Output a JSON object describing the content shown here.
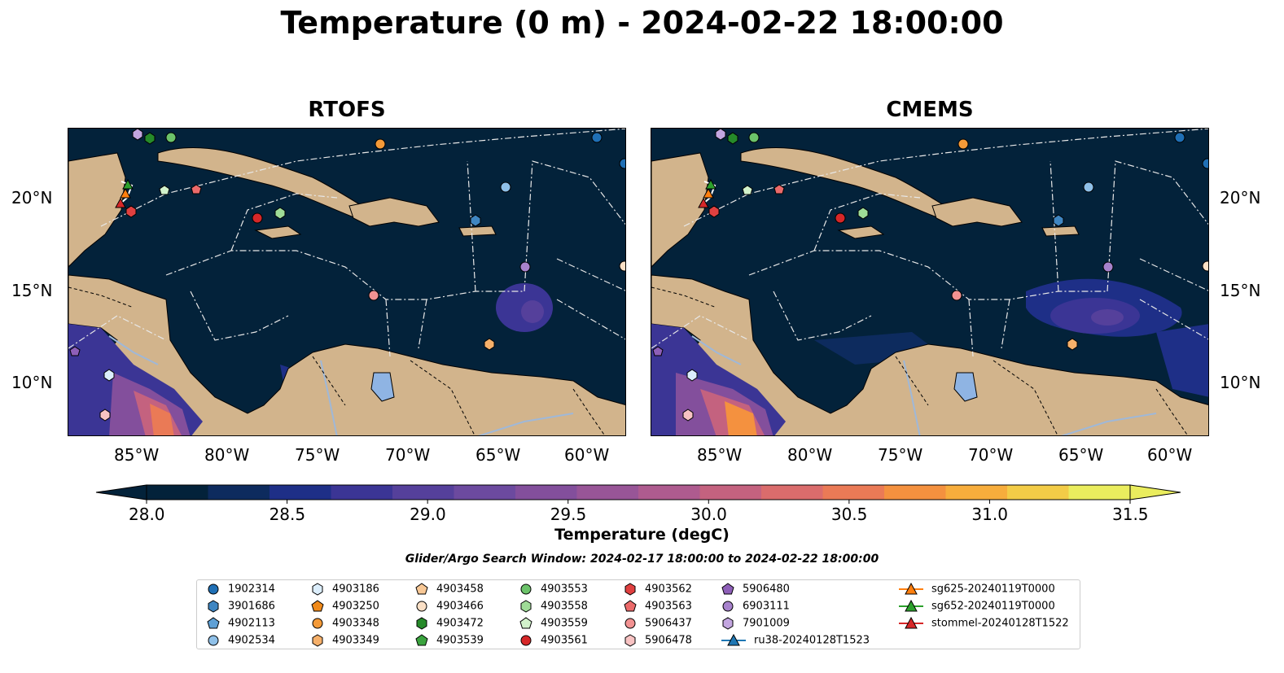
{
  "title": "Temperature (0 m) - 2024-02-22 18:00:00",
  "panels": [
    {
      "name": "RTOFS"
    },
    {
      "name": "CMEMS"
    }
  ],
  "lat_labels": [
    "20°N",
    "15°N",
    "10°N"
  ],
  "lon_labels": [
    "85°W",
    "80°W",
    "75°W",
    "70°W",
    "65°W",
    "60°W"
  ],
  "colorbar": {
    "label": "Temperature (degC)",
    "ticks": [
      "28.0",
      "28.5",
      "29.0",
      "29.5",
      "30.0",
      "30.5",
      "31.0",
      "31.5"
    ],
    "min": 28.0,
    "max": 31.5,
    "step": 0.25,
    "extend": "both",
    "colors": [
      "#03223a",
      "#0d2b5e",
      "#1e2f87",
      "#3b3595",
      "#55409b",
      "#6c4a9f",
      "#834f9c",
      "#985597",
      "#ae5b8f",
      "#c4627f",
      "#da6c6c",
      "#ea7a56",
      "#f4913f",
      "#f7ad3c",
      "#f3cc47",
      "#eaed5e"
    ]
  },
  "search_window": "Glider/Argo Search Window: 2024-02-17 18:00:00 to 2024-02-22 18:00:00",
  "legend": {
    "columns": [
      [
        {
          "label": "1902314",
          "marker": "circle",
          "color": "#1f6fb5"
        },
        {
          "label": "3901686",
          "marker": "hexagon",
          "color": "#3f86c2"
        },
        {
          "label": "4902113",
          "marker": "pentagon",
          "color": "#5fa0d5"
        },
        {
          "label": "4902534",
          "marker": "circle",
          "color": "#8fc0e8"
        }
      ],
      [
        {
          "label": "4903186",
          "marker": "hexagon",
          "color": "#dceefc"
        },
        {
          "label": "4903250",
          "marker": "pentagon",
          "color": "#f08a1a"
        },
        {
          "label": "4903348",
          "marker": "circle",
          "color": "#f49a38"
        },
        {
          "label": "4903349",
          "marker": "hexagon",
          "color": "#f6b06a"
        }
      ],
      [
        {
          "label": "4903458",
          "marker": "pentagon",
          "color": "#f8c896"
        },
        {
          "label": "4903466",
          "marker": "circle",
          "color": "#fbe0c6"
        },
        {
          "label": "4903472",
          "marker": "hexagon",
          "color": "#268a2a"
        },
        {
          "label": "4903539",
          "marker": "pentagon",
          "color": "#3aa33e"
        }
      ],
      [
        {
          "label": "4903553",
          "marker": "circle",
          "color": "#6cc36a"
        },
        {
          "label": "4903558",
          "marker": "hexagon",
          "color": "#9fdc97"
        },
        {
          "label": "4903559",
          "marker": "pentagon",
          "color": "#d2f2cb"
        },
        {
          "label": "4903561",
          "marker": "circle",
          "color": "#d62728"
        }
      ],
      [
        {
          "label": "4903562",
          "marker": "hexagon",
          "color": "#e04040"
        },
        {
          "label": "4903563",
          "marker": "pentagon",
          "color": "#eb6a6a"
        },
        {
          "label": "5906437",
          "marker": "circle",
          "color": "#f29292"
        },
        {
          "label": "5906478",
          "marker": "hexagon",
          "color": "#f8c3c3"
        }
      ],
      [
        {
          "label": "5906480",
          "marker": "pentagon",
          "color": "#8e5fb8"
        },
        {
          "label": "6903111",
          "marker": "circle",
          "color": "#a782cc"
        },
        {
          "label": "7901009",
          "marker": "hexagon",
          "color": "#c3a6e0"
        },
        {
          "label": "ru38-20240128T1523",
          "marker": "triangle-line",
          "color": "#1f77b4"
        }
      ],
      [
        {
          "label": "sg625-20240119T0000",
          "marker": "triangle-line",
          "color": "#ff7f0e"
        },
        {
          "label": "sg652-20240119T0000",
          "marker": "triangle-line",
          "color": "#2ca02c"
        },
        {
          "label": "stommel-20240128T1522",
          "marker": "triangle-line",
          "color": "#d62728"
        }
      ]
    ]
  },
  "colors": {
    "ocean": "#03223a",
    "land": "#d2b48c",
    "lake": "#8fb4e3",
    "river": "#9fb8d8"
  }
}
